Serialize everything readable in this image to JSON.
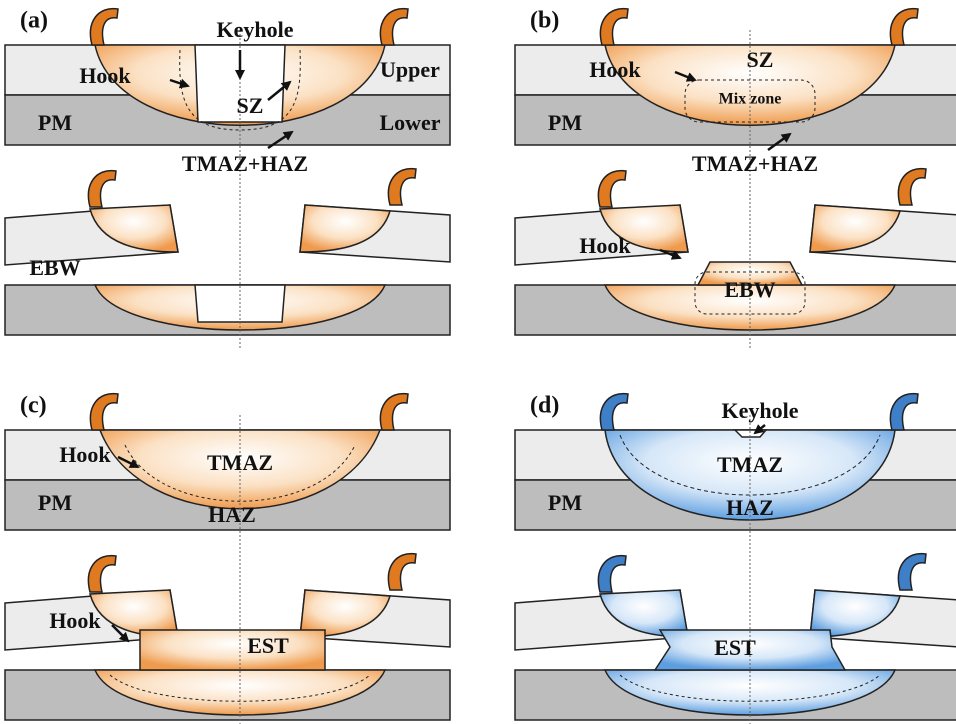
{
  "panels": [
    {
      "label": "(a)",
      "top": {
        "keyhole": "Keyhole",
        "hook": "Hook",
        "upper": "Upper",
        "sz": "SZ",
        "pm": "PM",
        "lower": "Lower",
        "zone": "TMAZ+HAZ"
      },
      "bottom": {
        "ebw": "EBW"
      }
    },
    {
      "label": "(b)",
      "top": {
        "hook": "Hook",
        "sz": "SZ",
        "mix": "Mix zone",
        "pm": "PM",
        "zone": "TMAZ+HAZ"
      },
      "bottom": {
        "hook": "Hook",
        "ebw": "EBW"
      }
    },
    {
      "label": "(c)",
      "top": {
        "hook": "Hook",
        "tmaz": "TMAZ",
        "pm": "PM",
        "haz": "HAZ"
      },
      "bottom": {
        "hook": "Hook",
        "est": "EST"
      }
    },
    {
      "label": "(d)",
      "top": {
        "keyhole": "Keyhole",
        "tmaz": "TMAZ",
        "pm": "PM",
        "haz": "HAZ"
      },
      "bottom": {
        "est": "EST"
      }
    }
  ]
}
